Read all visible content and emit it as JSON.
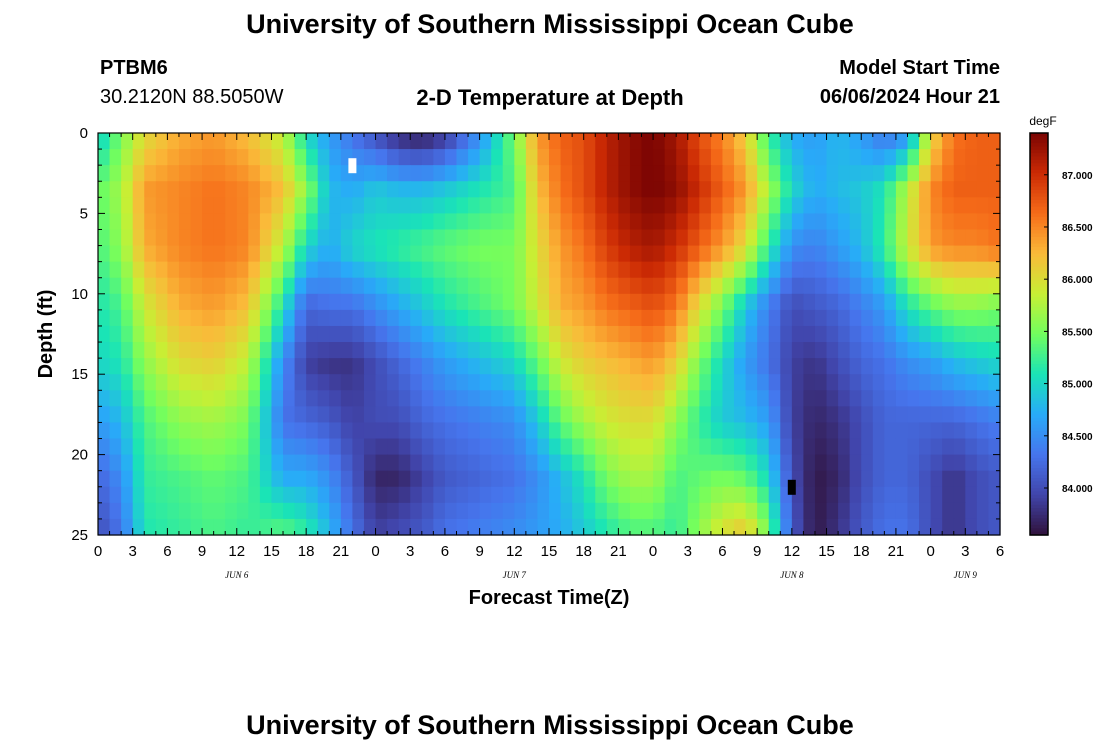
{
  "header": {
    "title": "University of Southern Mississippi Ocean Cube",
    "station_id": "PTBM6",
    "coords": "30.2120N  88.5050W",
    "plot_title": "2-D Temperature at Depth",
    "start_label": "Model Start Time",
    "start_value": "06/06/2024 Hour 21"
  },
  "footer": {
    "title": "University of Southern Mississippi Ocean Cube"
  },
  "chart_data": {
    "type": "heatmap",
    "title": "2-D Temperature at Depth",
    "xlabel": "Forecast Time(Z)",
    "ylabel": "Depth (ft)",
    "x_range": [
      0,
      78
    ],
    "y_range": [
      0,
      25
    ],
    "x_ticks": [
      {
        "v": 0,
        "label": "0"
      },
      {
        "v": 3,
        "label": "3"
      },
      {
        "v": 6,
        "label": "6"
      },
      {
        "v": 9,
        "label": "9"
      },
      {
        "v": 12,
        "label": "12"
      },
      {
        "v": 15,
        "label": "15"
      },
      {
        "v": 18,
        "label": "18"
      },
      {
        "v": 21,
        "label": "21"
      },
      {
        "v": 24,
        "label": "0"
      },
      {
        "v": 27,
        "label": "3"
      },
      {
        "v": 30,
        "label": "6"
      },
      {
        "v": 33,
        "label": "9"
      },
      {
        "v": 36,
        "label": "12"
      },
      {
        "v": 39,
        "label": "15"
      },
      {
        "v": 42,
        "label": "18"
      },
      {
        "v": 45,
        "label": "21"
      },
      {
        "v": 48,
        "label": "0"
      },
      {
        "v": 51,
        "label": "3"
      },
      {
        "v": 54,
        "label": "6"
      },
      {
        "v": 57,
        "label": "9"
      },
      {
        "v": 60,
        "label": "12"
      },
      {
        "v": 63,
        "label": "15"
      },
      {
        "v": 66,
        "label": "18"
      },
      {
        "v": 69,
        "label": "21"
      },
      {
        "v": 72,
        "label": "0"
      },
      {
        "v": 75,
        "label": "3"
      },
      {
        "v": 78,
        "label": "6"
      }
    ],
    "day_labels": [
      {
        "v": 12,
        "label": "JUN 6"
      },
      {
        "v": 36,
        "label": "JUN 7"
      },
      {
        "v": 60,
        "label": "JUN 8"
      },
      {
        "v": 75,
        "label": "JUN 9"
      }
    ],
    "y_ticks": [
      {
        "v": 0,
        "label": "0"
      },
      {
        "v": 5,
        "label": "5"
      },
      {
        "v": 10,
        "label": "10"
      },
      {
        "v": 15,
        "label": "15"
      },
      {
        "v": 20,
        "label": "20"
      },
      {
        "v": 25,
        "label": "25"
      }
    ],
    "colorbar": {
      "unit": "degF",
      "min": 83.55,
      "max": 87.4,
      "labels": [
        "87.000",
        "86.500",
        "86.000",
        "85.500",
        "85.000",
        "84.500",
        "84.000"
      ]
    },
    "grid_columns": 78,
    "grid_rows": 25,
    "depth_levels": [
      0,
      5,
      10,
      15,
      20,
      25
    ],
    "time_knots": [
      0,
      2,
      4,
      7,
      10,
      13,
      16,
      18,
      20,
      22,
      24,
      26,
      28,
      30,
      33,
      36,
      38,
      40,
      42,
      44,
      46,
      48,
      50,
      52,
      54,
      56,
      58,
      60,
      62,
      64,
      66,
      68,
      70,
      72,
      74,
      76,
      78
    ],
    "temperature_profiles": [
      [
        84.9,
        85.4,
        85.3,
        85.1,
        85.0,
        84.6,
        84.2,
        84.0
      ],
      [
        85.5,
        85.7,
        85.6,
        85.3,
        85.1,
        84.8,
        84.5,
        84.3
      ],
      [
        86.0,
        86.4,
        86.3,
        85.9,
        85.6,
        85.3,
        85.2,
        85.1
      ],
      [
        86.3,
        86.5,
        86.5,
        86.3,
        86.0,
        85.6,
        85.3,
        85.2
      ],
      [
        86.4,
        86.6,
        86.6,
        86.4,
        86.1,
        85.7,
        85.4,
        85.3
      ],
      [
        86.2,
        86.5,
        86.5,
        86.2,
        85.8,
        85.5,
        85.3,
        85.2
      ],
      [
        85.8,
        86.2,
        85.8,
        85.1,
        84.5,
        84.3,
        84.7,
        85.4
      ],
      [
        85.0,
        85.6,
        85.0,
        84.2,
        83.9,
        84.2,
        84.7,
        85.2
      ],
      [
        84.6,
        84.8,
        84.7,
        84.3,
        83.8,
        84.1,
        84.5,
        84.8
      ],
      [
        84.3,
        84.7,
        85.0,
        84.3,
        83.8,
        83.9,
        84.1,
        84.3
      ],
      [
        84.0,
        84.9,
        85.1,
        84.5,
        84.0,
        84.0,
        83.7,
        83.9
      ],
      [
        83.7,
        84.8,
        85.2,
        84.7,
        84.2,
        84.0,
        83.7,
        84.0
      ],
      [
        83.6,
        84.8,
        85.3,
        84.9,
        84.4,
        84.2,
        83.9,
        84.1
      ],
      [
        83.8,
        84.9,
        85.4,
        85.1,
        84.6,
        84.3,
        84.1,
        84.3
      ],
      [
        84.5,
        85.1,
        85.5,
        85.3,
        84.8,
        84.4,
        84.2,
        84.4
      ],
      [
        85.5,
        85.3,
        85.5,
        85.5,
        85.0,
        84.5,
        84.3,
        84.5
      ],
      [
        86.4,
        86.2,
        86.0,
        85.9,
        85.4,
        84.9,
        84.5,
        84.6
      ],
      [
        86.7,
        86.6,
        86.4,
        86.3,
        85.9,
        85.4,
        84.8,
        84.7
      ],
      [
        86.8,
        86.8,
        86.6,
        86.4,
        86.1,
        85.7,
        85.1,
        84.9
      ],
      [
        87.1,
        87.1,
        86.9,
        86.6,
        86.2,
        85.9,
        85.5,
        85.1
      ],
      [
        87.3,
        87.3,
        87.1,
        86.7,
        86.3,
        86.0,
        85.7,
        85.3
      ],
      [
        87.4,
        87.4,
        87.2,
        86.8,
        86.4,
        86.0,
        85.7,
        85.3
      ],
      [
        87.2,
        87.3,
        87.0,
        86.6,
        86.1,
        85.6,
        85.3,
        85.2
      ],
      [
        86.8,
        87.0,
        86.7,
        86.0,
        85.5,
        85.2,
        85.4,
        85.6
      ],
      [
        86.5,
        86.7,
        86.4,
        85.5,
        85.0,
        84.9,
        85.5,
        86.0
      ],
      [
        86.1,
        86.4,
        86.0,
        84.9,
        84.6,
        84.8,
        85.4,
        86.2
      ],
      [
        85.2,
        85.7,
        85.2,
        84.4,
        84.3,
        84.6,
        85.0,
        85.5
      ],
      [
        84.7,
        85.0,
        84.5,
        84.0,
        83.9,
        83.9,
        84.0,
        84.1
      ],
      [
        84.6,
        84.7,
        84.4,
        84.1,
        83.8,
        83.7,
        83.6,
        83.6
      ],
      [
        84.8,
        84.8,
        84.6,
        84.2,
        84.0,
        83.8,
        83.7,
        83.8
      ],
      [
        84.6,
        84.9,
        84.8,
        84.4,
        84.2,
        84.0,
        84.0,
        84.1
      ],
      [
        84.3,
        85.1,
        85.2,
        84.6,
        84.3,
        84.2,
        84.2,
        84.3
      ],
      [
        84.5,
        85.8,
        85.9,
        85.1,
        84.5,
        84.2,
        84.2,
        84.3
      ],
      [
        86.0,
        86.5,
        86.4,
        85.4,
        84.6,
        84.2,
        84.0,
        84.0
      ],
      [
        86.6,
        86.7,
        86.5,
        85.6,
        84.8,
        84.2,
        83.8,
        83.8
      ],
      [
        86.7,
        86.7,
        86.5,
        85.6,
        84.9,
        84.3,
        84.0,
        84.0
      ],
      [
        86.7,
        86.7,
        86.6,
        85.5,
        85.0,
        84.4,
        84.1,
        84.1
      ]
    ],
    "missing_cells": [
      {
        "x": 22,
        "depth": 2,
        "color": "#ffffff"
      },
      {
        "x": 60,
        "depth": 22,
        "color": "#000000"
      }
    ]
  }
}
